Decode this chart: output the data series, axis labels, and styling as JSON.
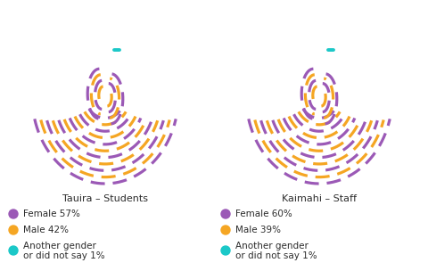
{
  "title_left": "Tauira – Students",
  "title_right": "Kaimahi – Staff",
  "colors": {
    "female": "#9B59B6",
    "male": "#F5A623",
    "other": "#1BC8C8"
  },
  "legend_left": [
    {
      "label": "Female 57%",
      "color": "#9B59B6"
    },
    {
      "label": "Male 42%",
      "color": "#F5A623"
    },
    {
      "label": "Another gender\nor did not say 1%",
      "color": "#1BC8C8"
    }
  ],
  "legend_right": [
    {
      "label": "Female 60%",
      "color": "#9B59B6"
    },
    {
      "label": "Male 39%",
      "color": "#F5A623"
    },
    {
      "label": "Another gender\nor did not say 1%",
      "color": "#1BC8C8"
    }
  ],
  "bg_color": "#FFFFFF",
  "text_color": "#2c2c2c"
}
